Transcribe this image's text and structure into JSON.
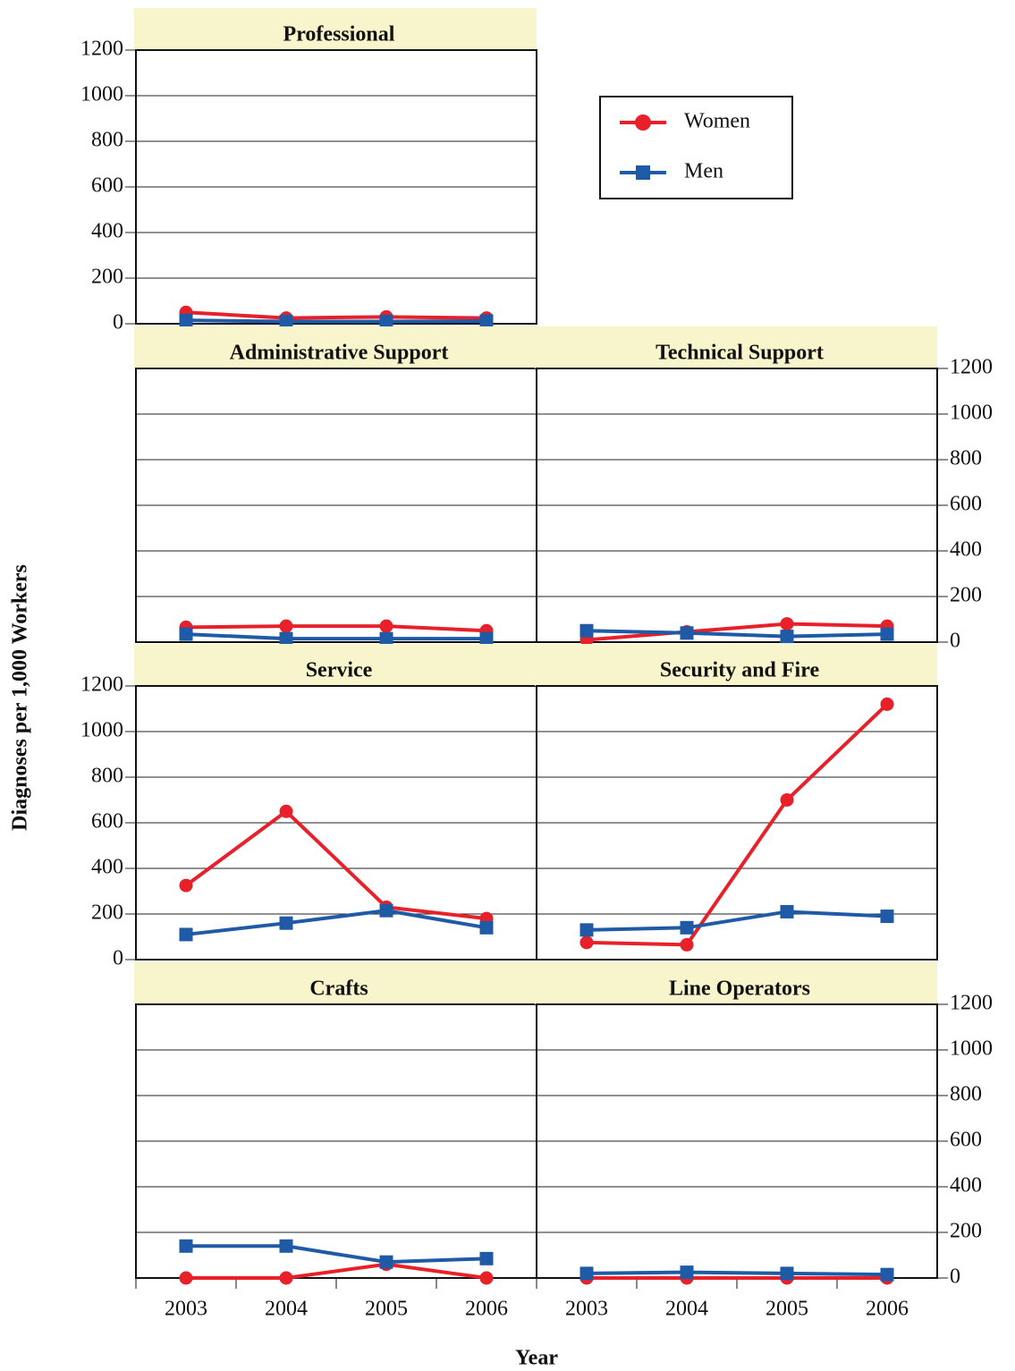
{
  "y_label": "Diagnoses per 1,000 Workers",
  "x_label": "Year",
  "chart_data": [
    {
      "type": "line",
      "title": "Professional",
      "categories": [
        "2003",
        "2004",
        "2005",
        "2006"
      ],
      "series": [
        {
          "name": "Women",
          "color": "#e8202a",
          "marker": "circle",
          "values": [
            50,
            25,
            30,
            25
          ]
        },
        {
          "name": "Men",
          "color": "#1f5aa6",
          "marker": "square",
          "values": [
            15,
            10,
            10,
            12
          ]
        }
      ],
      "ylim": [
        0,
        1200
      ],
      "yticks": [
        0,
        200,
        400,
        600,
        800,
        1000,
        1200
      ],
      "ytick_side": "left",
      "xtick_labels": false,
      "grid": true,
      "legend": true
    },
    {
      "type": "line",
      "title": "Administrative Support",
      "categories": [
        "2003",
        "2004",
        "2005",
        "2006"
      ],
      "series": [
        {
          "name": "Women",
          "color": "#e8202a",
          "marker": "circle",
          "values": [
            65,
            70,
            70,
            50
          ]
        },
        {
          "name": "Men",
          "color": "#1f5aa6",
          "marker": "square",
          "values": [
            35,
            15,
            15,
            15
          ]
        }
      ],
      "ylim": [
        0,
        1200
      ],
      "yticks": [
        0,
        200,
        400,
        600,
        800,
        1000,
        1200
      ],
      "ytick_side": "none",
      "xtick_labels": false,
      "grid": true
    },
    {
      "type": "line",
      "title": "Technical Support",
      "categories": [
        "2003",
        "2004",
        "2005",
        "2006"
      ],
      "series": [
        {
          "name": "Women",
          "color": "#e8202a",
          "marker": "circle",
          "values": [
            10,
            45,
            80,
            70
          ]
        },
        {
          "name": "Men",
          "color": "#1f5aa6",
          "marker": "square",
          "values": [
            50,
            40,
            25,
            35
          ]
        }
      ],
      "ylim": [
        0,
        1200
      ],
      "yticks": [
        0,
        200,
        400,
        600,
        800,
        1000,
        1200
      ],
      "ytick_side": "right",
      "xtick_labels": false,
      "grid": true
    },
    {
      "type": "line",
      "title": "Service",
      "categories": [
        "2003",
        "2004",
        "2005",
        "2006"
      ],
      "series": [
        {
          "name": "Women",
          "color": "#e8202a",
          "marker": "circle",
          "values": [
            325,
            650,
            230,
            180
          ]
        },
        {
          "name": "Men",
          "color": "#1f5aa6",
          "marker": "square",
          "values": [
            110,
            160,
            215,
            140
          ]
        }
      ],
      "ylim": [
        0,
        1200
      ],
      "yticks": [
        0,
        200,
        400,
        600,
        800,
        1000,
        1200
      ],
      "ytick_side": "left",
      "xtick_labels": false,
      "grid": true
    },
    {
      "type": "line",
      "title": "Security and Fire",
      "categories": [
        "2003",
        "2004",
        "2005",
        "2006"
      ],
      "series": [
        {
          "name": "Women",
          "color": "#e8202a",
          "marker": "circle",
          "values": [
            75,
            65,
            700,
            1120
          ]
        },
        {
          "name": "Men",
          "color": "#1f5aa6",
          "marker": "square",
          "values": [
            130,
            140,
            210,
            190
          ]
        }
      ],
      "ylim": [
        0,
        1200
      ],
      "yticks": [
        0,
        200,
        400,
        600,
        800,
        1000,
        1200
      ],
      "ytick_side": "none",
      "xtick_labels": false,
      "grid": true
    },
    {
      "type": "line",
      "title": "Crafts",
      "categories": [
        "2003",
        "2004",
        "2005",
        "2006"
      ],
      "series": [
        {
          "name": "Women",
          "color": "#e8202a",
          "marker": "circle",
          "values": [
            0,
            0,
            60,
            0
          ]
        },
        {
          "name": "Men",
          "color": "#1f5aa6",
          "marker": "square",
          "values": [
            140,
            140,
            70,
            85
          ]
        }
      ],
      "ylim": [
        0,
        1200
      ],
      "yticks": [
        0,
        200,
        400,
        600,
        800,
        1000,
        1200
      ],
      "ytick_side": "none",
      "xtick_labels": true,
      "grid": true
    },
    {
      "type": "line",
      "title": "Line Operators",
      "categories": [
        "2003",
        "2004",
        "2005",
        "2006"
      ],
      "series": [
        {
          "name": "Women",
          "color": "#e8202a",
          "marker": "circle",
          "values": [
            0,
            0,
            0,
            0
          ]
        },
        {
          "name": "Men",
          "color": "#1f5aa6",
          "marker": "square",
          "values": [
            20,
            25,
            20,
            15
          ]
        }
      ],
      "ylim": [
        0,
        1200
      ],
      "yticks": [
        0,
        200,
        400,
        600,
        800,
        1000,
        1200
      ],
      "ytick_side": "right",
      "xtick_labels": true,
      "grid": true
    }
  ]
}
